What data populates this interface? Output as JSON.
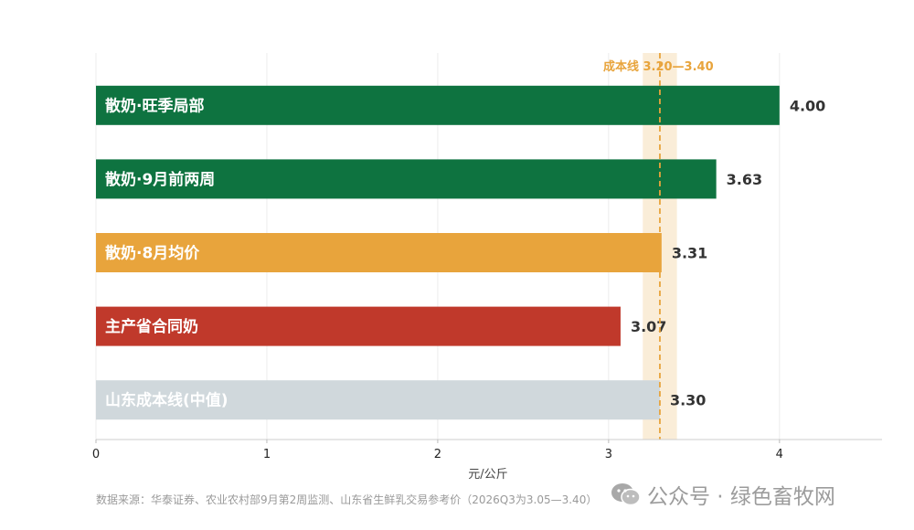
{
  "chart_data": {
    "type": "bar",
    "orientation": "horizontal",
    "categories": [
      "散奶·旺季局部",
      "散奶·9月前两周",
      "散奶·8月均价",
      "主产省合同奶",
      "山东成本线(中值)"
    ],
    "values": [
      4.0,
      3.63,
      3.31,
      3.07,
      3.3
    ],
    "value_labels": [
      "4.00",
      "3.63",
      "3.31",
      "3.07",
      "3.30"
    ],
    "colors": [
      "#0e7340",
      "#0e7340",
      "#e8a43c",
      "#c0392b",
      "#d0d8dc"
    ],
    "xlabel": "元/公斤",
    "xlim": [
      0,
      4.6
    ],
    "xticks": [
      0,
      1,
      2,
      3,
      4
    ],
    "grid": true,
    "cost_band": {
      "low": 3.2,
      "high": 3.4,
      "mid": 3.3,
      "label": "成本线 3.20—3.40",
      "color": "#e8a43c"
    }
  },
  "source": "数据来源：华泰证券、农业农村部9月第2周监测、山东省生鲜乳交易参考价（2026Q3为3.05—3.40）",
  "watermark": {
    "text": "公众号 · 绿色畜牧网",
    "icon": "wechat-icon"
  }
}
